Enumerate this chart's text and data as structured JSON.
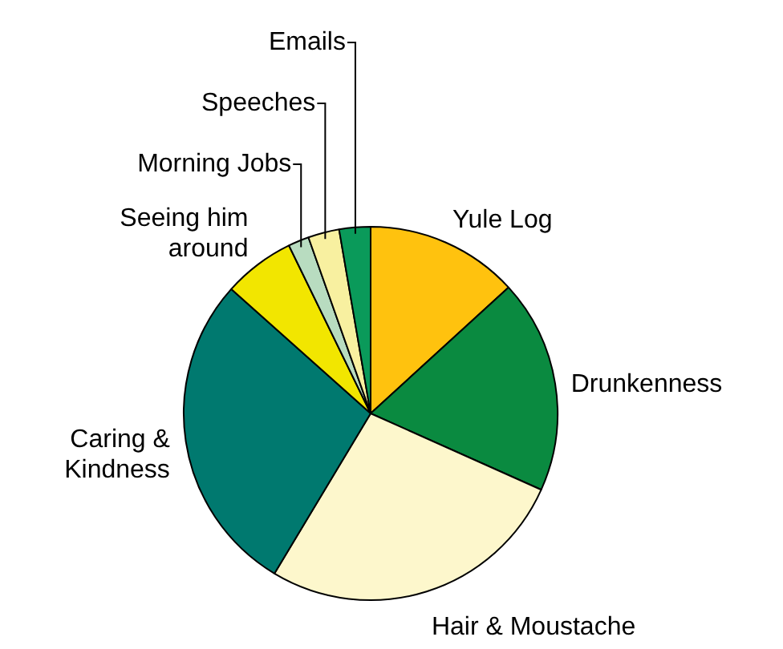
{
  "chart_data": {
    "type": "pie",
    "categories": [
      "Yule Log",
      "Drunkenness",
      "Hair & Moustache",
      "Caring & Kindness",
      "Seeing him around",
      "Morning Jobs",
      "Speeches",
      "Emails"
    ],
    "values": [
      13.2,
      18.5,
      26.9,
      28.0,
      6.2,
      1.8,
      2.7,
      2.7
    ],
    "colors": [
      "#ffc20e",
      "#0a8a40",
      "#fdf7cc",
      "#00796f",
      "#f2e600",
      "#b8dcc0",
      "#f8f0a0",
      "#0a9a5a"
    ],
    "legend": false
  }
}
